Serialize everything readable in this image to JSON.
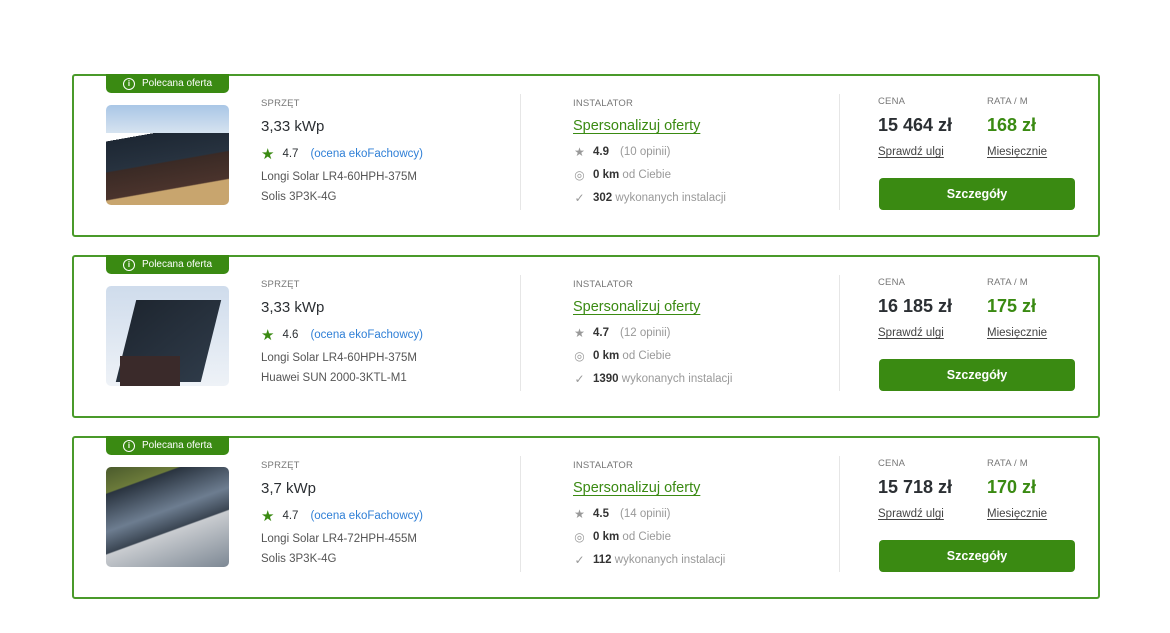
{
  "labels": {
    "badge": "Polecana oferta",
    "equipment": "SPRZĘT",
    "installer": "INSTALATOR",
    "price": "CENA",
    "installment": "RATA / M",
    "personalize": "Spersonalizuj oferty",
    "rating_source": "(ocena ekoFachowcy)",
    "distance_suffix": "od Ciebie",
    "installs_suffix": "wykonanych instalacji",
    "check_relief": "Sprawdź ulgi",
    "monthly": "Miesięcznie",
    "details": "Szczegóły"
  },
  "colors": {
    "accent": "#3a8a12",
    "link": "#2f7fd6",
    "star": "#f5b800"
  },
  "offers": [
    {
      "power": "3,33 kWp",
      "rating": "4.7",
      "panel": "Longi Solar LR4-60HPH-375M",
      "inverter": "Solis 3P3K-4G",
      "installer_rating": "4.9",
      "reviews": "(10 opinii)",
      "distance": "0 km",
      "installs": "302",
      "price": "15 464 zł",
      "monthly": "168 zł"
    },
    {
      "power": "3,33 kWp",
      "rating": "4.6",
      "panel": "Longi Solar LR4-60HPH-375M",
      "inverter": "Huawei SUN 2000-3KTL-M1",
      "installer_rating": "4.7",
      "reviews": "(12 opinii)",
      "distance": "0 km",
      "installs": "1390",
      "price": "16 185 zł",
      "monthly": "175 zł"
    },
    {
      "power": "3,7 kWp",
      "rating": "4.7",
      "panel": "Longi Solar LR4-72HPH-455M",
      "inverter": "Solis 3P3K-4G",
      "installer_rating": "4.5",
      "reviews": "(14 opinii)",
      "distance": "0 km",
      "installs": "112",
      "price": "15 718 zł",
      "monthly": "170 zł"
    }
  ]
}
